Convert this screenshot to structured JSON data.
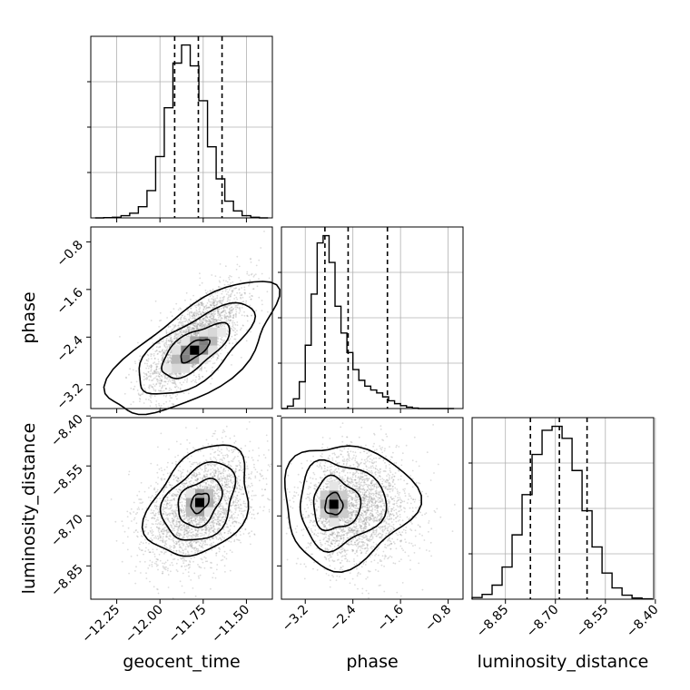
{
  "chart_data": [
    {
      "type": "histogram",
      "panel": "geocent_time marginal",
      "x": [
        -12.35,
        -12.3,
        -12.25,
        -12.2,
        -12.15,
        -12.1,
        -12.05,
        -12.0,
        -11.95,
        -11.9,
        -11.85,
        -11.8,
        -11.75,
        -11.7,
        -11.65,
        -11.6,
        -11.55,
        -11.5,
        -11.45,
        -11.4
      ],
      "values": [
        0,
        1,
        2,
        8,
        17,
        40,
        98,
        220,
        395,
        555,
        620,
        545,
        420,
        255,
        140,
        60,
        25,
        8,
        2,
        0
      ],
      "quantiles": [
        -11.915,
        -11.778,
        -11.641
      ],
      "xlim": [
        -12.4,
        -11.35
      ],
      "grid": true
    },
    {
      "type": "histogram",
      "panel": "phase marginal",
      "x": [
        -3.55,
        -3.45,
        -3.35,
        -3.25,
        -3.15,
        -3.05,
        -2.95,
        -2.85,
        -2.75,
        -2.65,
        -2.55,
        -2.45,
        -2.35,
        -2.25,
        -2.15,
        -2.05,
        -1.95,
        -1.85,
        -1.75,
        -1.65,
        -1.55,
        -1.45,
        -1.35,
        -1.25,
        -1.15,
        -1.05,
        -0.95,
        -0.85,
        -0.75
      ],
      "values": [
        0,
        5,
        20,
        55,
        130,
        235,
        340,
        355,
        300,
        210,
        155,
        115,
        80,
        58,
        46,
        38,
        32,
        24,
        16,
        10,
        6,
        3,
        1,
        0,
        0,
        0,
        0,
        0,
        0
      ],
      "quantiles": [
        -2.87,
        -2.48,
        -1.82
      ],
      "xlim": [
        -3.6,
        -0.55
      ],
      "grid": true
    },
    {
      "type": "histogram",
      "panel": "luminosity_distance marginal",
      "x": [
        -8.935,
        -8.905,
        -8.875,
        -8.845,
        -8.815,
        -8.785,
        -8.755,
        -8.725,
        -8.695,
        -8.665,
        -8.635,
        -8.605,
        -8.575,
        -8.545,
        -8.515,
        -8.485,
        -8.455,
        -8.425
      ],
      "values": [
        4,
        12,
        35,
        80,
        160,
        260,
        360,
        420,
        430,
        400,
        320,
        220,
        130,
        65,
        28,
        10,
        3,
        1
      ],
      "quantiles": [
        -8.775,
        -8.688,
        -8.605
      ],
      "xlim": [
        -8.95,
        -8.405
      ],
      "grid": true
    },
    {
      "type": "scatter",
      "panel": "phase vs geocent_time",
      "xlabel": "geocent_time",
      "ylabel": "phase",
      "xlim": [
        -12.4,
        -11.35
      ],
      "ylim": [
        -3.6,
        -0.55
      ],
      "xticks": [
        "−12.25",
        "−12.00",
        "−11.75",
        "−11.50"
      ],
      "yticks": [
        "−0.8",
        "−1.6",
        "−2.4",
        "−3.2"
      ],
      "x_tick_values": [
        -12.25,
        -12.0,
        -11.75,
        -11.5
      ],
      "y_tick_values": [
        -0.8,
        -1.6,
        -2.4,
        -3.2
      ],
      "peak": [
        -11.8,
        -2.62
      ]
    },
    {
      "type": "scatter",
      "panel": "luminosity_distance vs geocent_time",
      "xlabel": "geocent_time",
      "ylabel": "luminosity_distance",
      "xlim": [
        -12.4,
        -11.35
      ],
      "ylim": [
        -8.95,
        -8.405
      ],
      "xticks": [
        "−12.25",
        "−12.00",
        "−11.75",
        "−11.50"
      ],
      "yticks": [
        "−8.40",
        "−8.55",
        "−8.70",
        "−8.85"
      ],
      "x_tick_values": [
        -12.25,
        -12.0,
        -11.75,
        -11.5
      ],
      "y_tick_values": [
        -8.4,
        -8.55,
        -8.7,
        -8.85
      ],
      "peak": [
        -11.77,
        -8.66
      ]
    },
    {
      "type": "scatter",
      "panel": "luminosity_distance vs phase",
      "xlabel": "phase",
      "ylabel": "luminosity_distance",
      "xlim": [
        -3.6,
        -0.55
      ],
      "ylim": [
        -8.95,
        -8.405
      ],
      "xticks": [
        "−3.2",
        "−2.4",
        "−1.6",
        "−0.8"
      ],
      "yticks": [
        "−8.40",
        "−8.55",
        "−8.70",
        "−8.85"
      ],
      "x_tick_values": [
        -3.2,
        -2.4,
        -1.6,
        -0.8
      ],
      "y_tick_values": [
        -8.4,
        -8.55,
        -8.7,
        -8.85
      ],
      "peak": [
        -2.72,
        -8.665
      ]
    }
  ],
  "xlabels": {
    "geocent_time": "geocent_time",
    "phase": "phase",
    "luminosity_distance": "luminosity_distance"
  },
  "ylabels": {
    "phase": "phase",
    "luminosity_distance": "luminosity_distance"
  },
  "bottom_xticks": {
    "luminosity_distance": [
      "−8.85",
      "−8.70",
      "−8.55",
      "−8.40"
    ],
    "luminosity_distance_values": [
      -8.85,
      -8.7,
      -8.55,
      -8.4
    ]
  },
  "colors": {
    "line": "#000000",
    "grid": "#b0b0b0",
    "points": "#9a9a9a"
  }
}
